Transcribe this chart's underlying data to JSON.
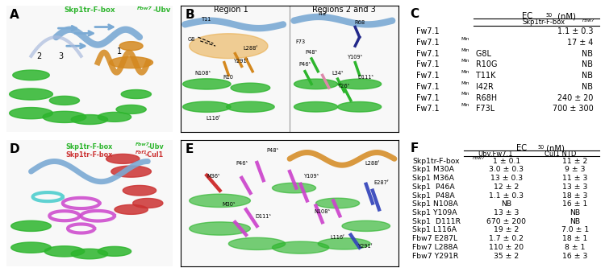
{
  "panel_C": {
    "title": "C",
    "rows": [
      [
        "Fw7.1",
        "",
        "",
        "1.1 ± 0.3"
      ],
      [
        "Fw7.1",
        "Min",
        "",
        "17 ± 4"
      ],
      [
        "Fw7.1",
        "Min",
        " G8L",
        "NB"
      ],
      [
        "Fw7.1",
        "Min",
        " R10G",
        "NB"
      ],
      [
        "Fw7.1",
        "Min",
        " T11K",
        "NB"
      ],
      [
        "Fw7.1",
        "Min",
        " I42R",
        "NB"
      ],
      [
        "Fw7.1",
        "Min",
        " R68H",
        "240 ± 20"
      ],
      [
        "Fw7.1",
        "Min",
        " F73L",
        "700 ± 300"
      ]
    ]
  },
  "panel_F": {
    "title": "F",
    "rows": [
      [
        "Skp1tr-F-box",
        "Fbw7",
        "1 ± 0.1",
        "11 ± 2"
      ],
      [
        "Skp1 M30A",
        "",
        "3.0 ± 0.3",
        "9 ± 3"
      ],
      [
        "Skp1 M36A",
        "",
        "13 ± 0.3",
        "11 ± 3"
      ],
      [
        "Skp1  P46A",
        "",
        "12 ± 2",
        "13 ± 3"
      ],
      [
        "Skp1  P48A",
        "",
        "1.1 ± 0.3",
        "18 ± 3"
      ],
      [
        "Skp1 N108A",
        "",
        "NB",
        "16 ± 1"
      ],
      [
        "Skp1 Y109A",
        "",
        "13 ± 3",
        "NB"
      ],
      [
        "Skp1  D111R",
        "",
        "670 ± 200",
        "NB"
      ],
      [
        "Skp1 L116A",
        "",
        "19 ± 2",
        "7.0 ± 1"
      ],
      [
        "Fbw7 E287L",
        "",
        "1.7 ± 0.2",
        "18 ± 1"
      ],
      [
        "Fbw7 L288A",
        "",
        "110 ± 20",
        "8 ± 1"
      ],
      [
        "Fbw7 Y291R",
        "",
        "35 ± 2",
        "16 ± 3"
      ]
    ]
  },
  "bg_color": "#ffffff",
  "text_color": "#231f20",
  "green_color": "#2db52d",
  "blue_color": "#7baad4",
  "orange_color": "#d4881e",
  "red_color": "#cc3333",
  "magenta_color": "#cc44cc",
  "cyan_color": "#44cccc",
  "darkblue_color": "#3344bb"
}
